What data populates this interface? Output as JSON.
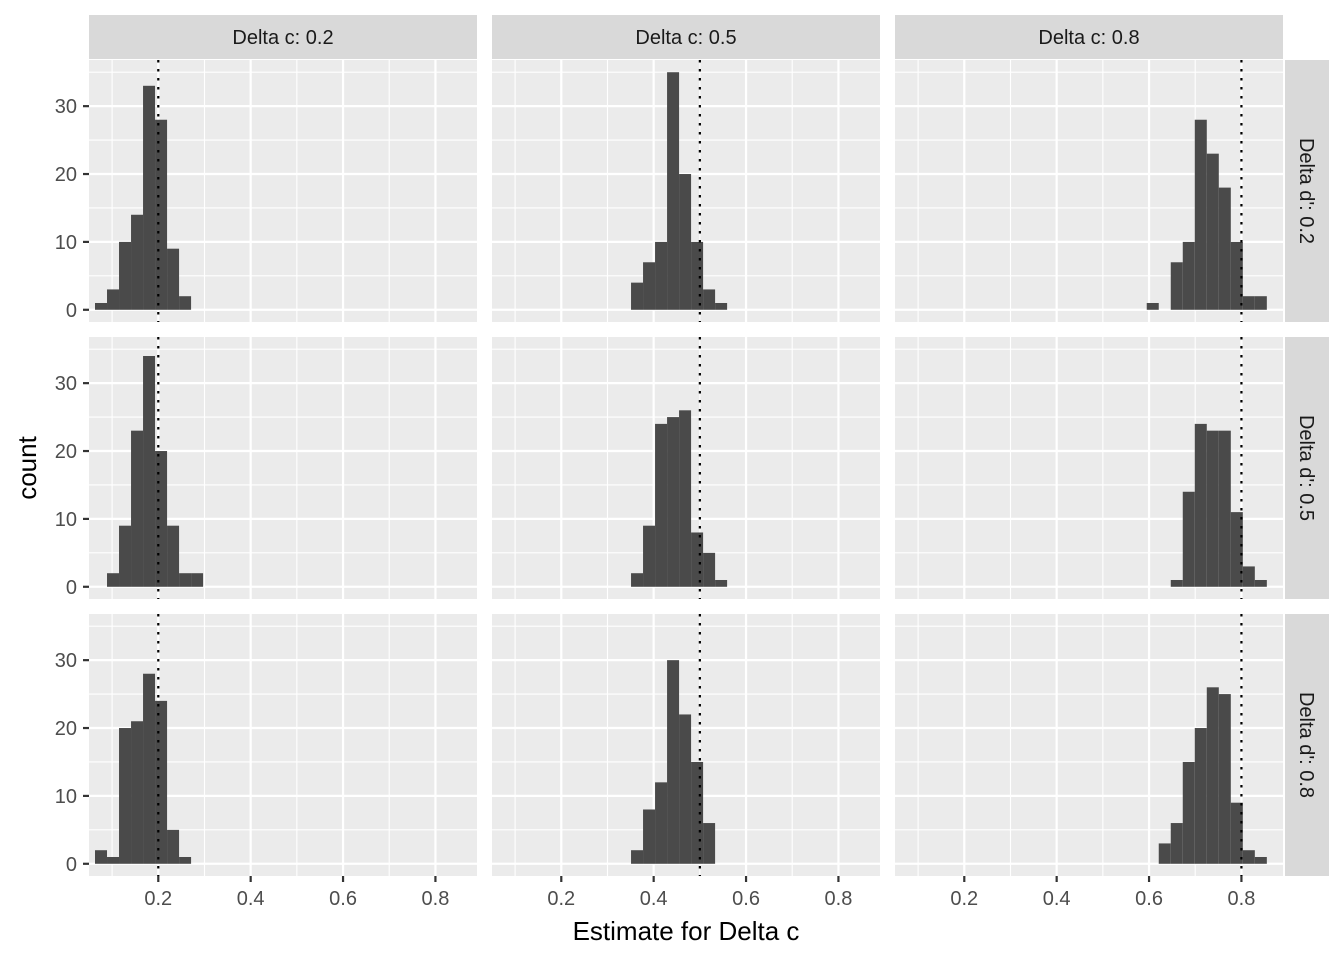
{
  "chart_data": {
    "type": "histogram",
    "xlabel": "Estimate for Delta c",
    "ylabel": "count",
    "xlim": [
      0.05,
      0.89
    ],
    "ylim": [
      -1.8,
      36.8
    ],
    "x_ticks": [
      0.2,
      0.4,
      0.6,
      0.8
    ],
    "x_tick_labels": [
      "0.2",
      "0.4",
      "0.6",
      "0.8"
    ],
    "y_ticks": [
      0,
      10,
      20,
      30
    ],
    "y_tick_labels": [
      "0",
      "10",
      "20",
      "30"
    ],
    "grid": true,
    "bin_width": 0.026,
    "col_labels": [
      "Delta c: 0.2",
      "Delta c: 0.5",
      "Delta c: 0.8"
    ],
    "row_labels": [
      "Delta d': 0.2",
      "Delta d': 0.5",
      "Delta d': 0.8"
    ],
    "panels": [
      {
        "row": 0,
        "col": 0,
        "ref": 0.2,
        "bins": [
          [
            0.076,
            1
          ],
          [
            0.102,
            3
          ],
          [
            0.128,
            10
          ],
          [
            0.154,
            14
          ],
          [
            0.18,
            33
          ],
          [
            0.206,
            28
          ],
          [
            0.232,
            9
          ],
          [
            0.258,
            2
          ]
        ]
      },
      {
        "row": 0,
        "col": 1,
        "ref": 0.5,
        "bins": [
          [
            0.364,
            4
          ],
          [
            0.39,
            7
          ],
          [
            0.416,
            10
          ],
          [
            0.442,
            35
          ],
          [
            0.468,
            20
          ],
          [
            0.494,
            10
          ],
          [
            0.52,
            3
          ],
          [
            0.546,
            1
          ]
        ]
      },
      {
        "row": 0,
        "col": 2,
        "ref": 0.8,
        "bins": [
          [
            0.608,
            1
          ],
          [
            0.634,
            0
          ],
          [
            0.66,
            7
          ],
          [
            0.686,
            10
          ],
          [
            0.712,
            28
          ],
          [
            0.738,
            23
          ],
          [
            0.764,
            18
          ],
          [
            0.79,
            10
          ],
          [
            0.816,
            2
          ],
          [
            0.842,
            2
          ]
        ]
      },
      {
        "row": 1,
        "col": 0,
        "ref": 0.2,
        "bins": [
          [
            0.102,
            2
          ],
          [
            0.128,
            9
          ],
          [
            0.154,
            23
          ],
          [
            0.18,
            34
          ],
          [
            0.206,
            20
          ],
          [
            0.232,
            9
          ],
          [
            0.258,
            2
          ],
          [
            0.284,
            2
          ]
        ]
      },
      {
        "row": 1,
        "col": 1,
        "ref": 0.5,
        "bins": [
          [
            0.364,
            2
          ],
          [
            0.39,
            9
          ],
          [
            0.416,
            24
          ],
          [
            0.442,
            25
          ],
          [
            0.468,
            26
          ],
          [
            0.494,
            8
          ],
          [
            0.52,
            5
          ],
          [
            0.546,
            1
          ]
        ]
      },
      {
        "row": 1,
        "col": 2,
        "ref": 0.8,
        "bins": [
          [
            0.66,
            1
          ],
          [
            0.686,
            14
          ],
          [
            0.712,
            24
          ],
          [
            0.738,
            23
          ],
          [
            0.764,
            23
          ],
          [
            0.79,
            11
          ],
          [
            0.816,
            3
          ],
          [
            0.842,
            1
          ]
        ]
      },
      {
        "row": 2,
        "col": 0,
        "ref": 0.2,
        "bins": [
          [
            0.076,
            2
          ],
          [
            0.102,
            1
          ],
          [
            0.128,
            20
          ],
          [
            0.154,
            21
          ],
          [
            0.18,
            28
          ],
          [
            0.206,
            24
          ],
          [
            0.232,
            5
          ],
          [
            0.258,
            1
          ]
        ]
      },
      {
        "row": 2,
        "col": 1,
        "ref": 0.5,
        "bins": [
          [
            0.364,
            2
          ],
          [
            0.39,
            8
          ],
          [
            0.416,
            12
          ],
          [
            0.442,
            30
          ],
          [
            0.468,
            22
          ],
          [
            0.494,
            15
          ],
          [
            0.52,
            6
          ]
        ]
      },
      {
        "row": 2,
        "col": 2,
        "ref": 0.8,
        "bins": [
          [
            0.634,
            3
          ],
          [
            0.66,
            6
          ],
          [
            0.686,
            15
          ],
          [
            0.712,
            20
          ],
          [
            0.738,
            26
          ],
          [
            0.764,
            25
          ],
          [
            0.79,
            9
          ],
          [
            0.816,
            2
          ],
          [
            0.842,
            1
          ]
        ]
      }
    ]
  }
}
